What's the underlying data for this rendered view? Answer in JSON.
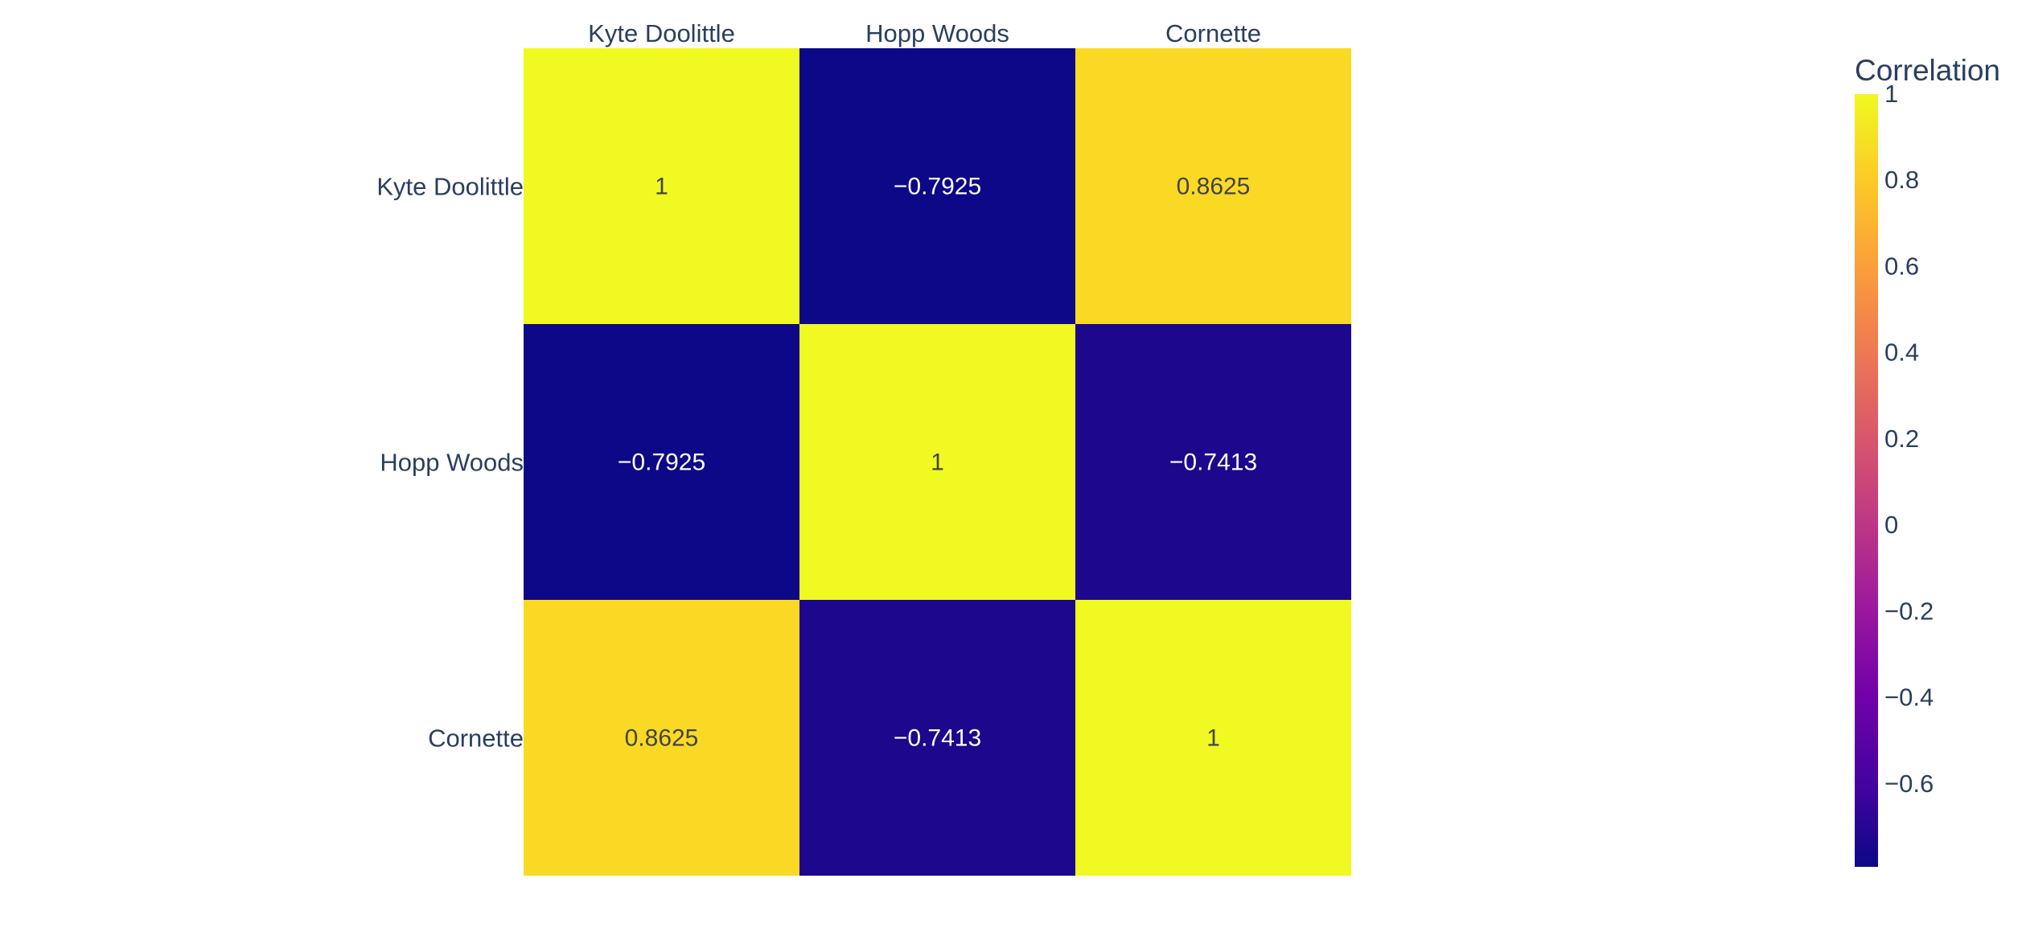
{
  "chart_data": {
    "type": "heatmap",
    "x_categories": [
      "Kyte Doolittle",
      "Hopp Woods",
      "Cornette"
    ],
    "y_categories": [
      "Kyte Doolittle",
      "Hopp Woods",
      "Cornette"
    ],
    "values": [
      [
        1,
        -0.7925,
        0.8625
      ],
      [
        -0.7925,
        1,
        -0.7413
      ],
      [
        0.8625,
        -0.7413,
        1
      ]
    ],
    "cell_labels": [
      [
        "1",
        "−0.7925",
        "0.8625"
      ],
      [
        "−0.7925",
        "1",
        "−0.7413"
      ],
      [
        "0.8625",
        "−0.7413",
        "1"
      ]
    ],
    "x_axis_position": "top",
    "colorbar": {
      "title": "Correlation",
      "range": [
        -0.7925,
        1
      ],
      "ticks": [
        1,
        0.8,
        0.6,
        0.4,
        0.2,
        0,
        -0.2,
        -0.4,
        -0.6
      ],
      "tick_labels": [
        "1",
        "0.8",
        "0.6",
        "0.4",
        "0.2",
        "0",
        "−0.2",
        "−0.4",
        "−0.6"
      ]
    },
    "colorscale": [
      "#0d0887",
      "#46039f",
      "#7201a8",
      "#9c179e",
      "#bd3786",
      "#d8576b",
      "#ed7953",
      "#fb9f3a",
      "#fdca26",
      "#f0f921"
    ],
    "colors": {
      "axis_text": "#2a3f5f",
      "cell_text_light": "#ffffff",
      "cell_text_dark": "#444444"
    }
  }
}
